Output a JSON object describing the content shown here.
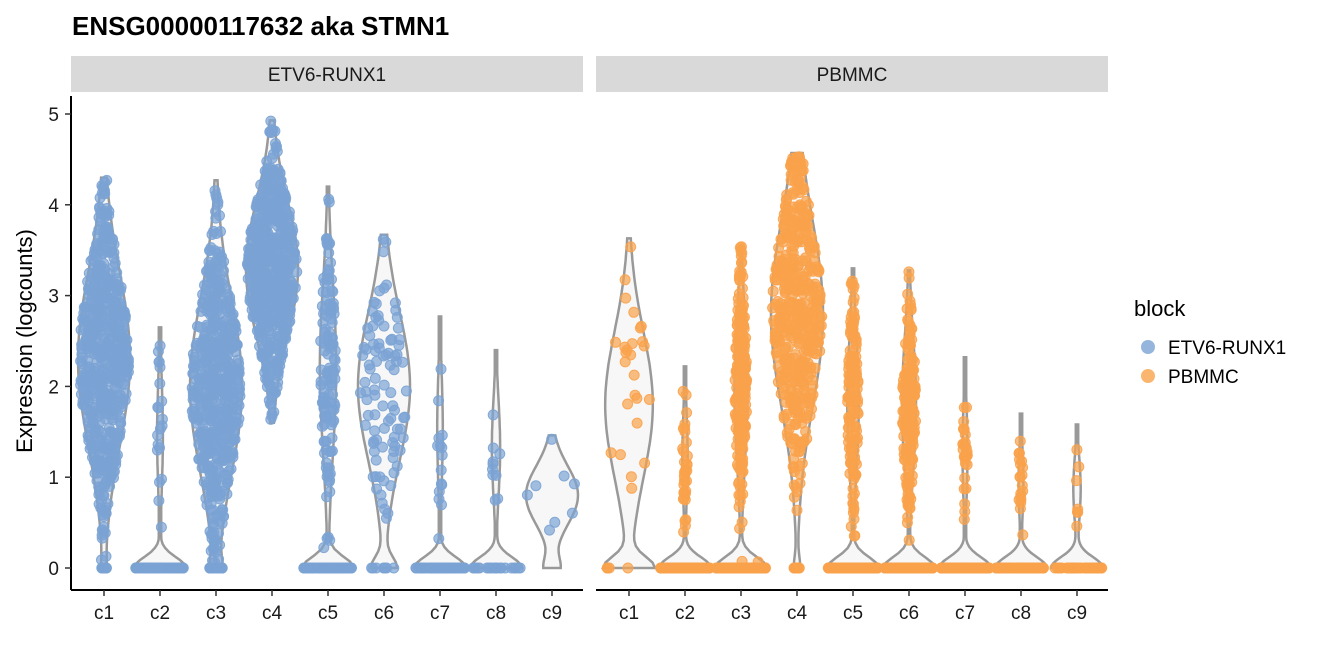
{
  "chart_data": {
    "type": "violin",
    "title": "ENSG00000117632 aka STMN1",
    "xlabel": "",
    "ylabel": "Expression (logcounts)",
    "ylim": [
      0,
      5.1
    ],
    "yticks": [
      0,
      1,
      2,
      3,
      4,
      5
    ],
    "categories": [
      "c1",
      "c2",
      "c3",
      "c4",
      "c5",
      "c6",
      "c7",
      "c8",
      "c9"
    ],
    "facets": [
      "ETV6-RUNX1",
      "PBMMC"
    ],
    "legend": {
      "title": "block",
      "position": "right",
      "items": [
        {
          "label": "ETV6-RUNX1",
          "color": "#7BA3D4"
        },
        {
          "label": "PBMMC",
          "color": "#F9A24B"
        }
      ]
    },
    "grid": false,
    "series": [
      {
        "name": "ETV6-RUNX1",
        "facet": "ETV6-RUNX1",
        "color": "#7BA3D4",
        "groups": [
          {
            "category": "c1",
            "min": 0,
            "max": 4.3,
            "median": 2.3,
            "zero_fraction": 0.01,
            "points": 1200
          },
          {
            "category": "c2",
            "min": 0,
            "max": 2.65,
            "median": 0,
            "zero_fraction": 0.75,
            "points": 90
          },
          {
            "category": "c3",
            "min": 0,
            "max": 4.27,
            "median": 2.0,
            "zero_fraction": 0.03,
            "points": 1100
          },
          {
            "category": "c4",
            "min": 1.6,
            "max": 4.93,
            "median": 3.3,
            "zero_fraction": 0,
            "points": 900
          },
          {
            "category": "c5",
            "min": 0,
            "max": 4.2,
            "median": 2.2,
            "zero_fraction": 0.4,
            "points": 200
          },
          {
            "category": "c6",
            "min": 0,
            "max": 3.67,
            "median": 2.0,
            "zero_fraction": 0.1,
            "points": 100
          },
          {
            "category": "c7",
            "min": 0,
            "max": 2.77,
            "median": 0,
            "zero_fraction": 0.75,
            "points": 80
          },
          {
            "category": "c8",
            "min": 0,
            "max": 2.4,
            "median": 0,
            "zero_fraction": 0.7,
            "points": 30
          },
          {
            "category": "c9",
            "min": 0,
            "max": 1.46,
            "median": 0.8,
            "zero_fraction": 0.15,
            "points": 8
          }
        ]
      },
      {
        "name": "PBMMC",
        "facet": "PBMMC",
        "color": "#F9A24B",
        "groups": [
          {
            "category": "c1",
            "min": 0,
            "max": 3.63,
            "median": 1.8,
            "zero_fraction": 0.2,
            "points": 30
          },
          {
            "category": "c2",
            "min": 0,
            "max": 2.22,
            "median": 0,
            "zero_fraction": 0.8,
            "points": 150
          },
          {
            "category": "c3",
            "min": 0,
            "max": 3.55,
            "median": 0,
            "zero_fraction": 0.5,
            "points": 400
          },
          {
            "category": "c4",
            "min": 0,
            "max": 4.57,
            "median": 2.8,
            "zero_fraction": 0.02,
            "points": 500
          },
          {
            "category": "c5",
            "min": 0,
            "max": 3.3,
            "median": 0,
            "zero_fraction": 0.55,
            "points": 300
          },
          {
            "category": "c6",
            "min": 0,
            "max": 3.28,
            "median": 0,
            "zero_fraction": 0.5,
            "points": 350
          },
          {
            "category": "c7",
            "min": 0,
            "max": 2.32,
            "median": 0,
            "zero_fraction": 0.8,
            "points": 150
          },
          {
            "category": "c8",
            "min": 0,
            "max": 1.7,
            "median": 0,
            "zero_fraction": 0.85,
            "points": 100
          },
          {
            "category": "c9",
            "min": 0,
            "max": 1.58,
            "median": 0,
            "zero_fraction": 0.8,
            "points": 60
          }
        ]
      }
    ]
  }
}
